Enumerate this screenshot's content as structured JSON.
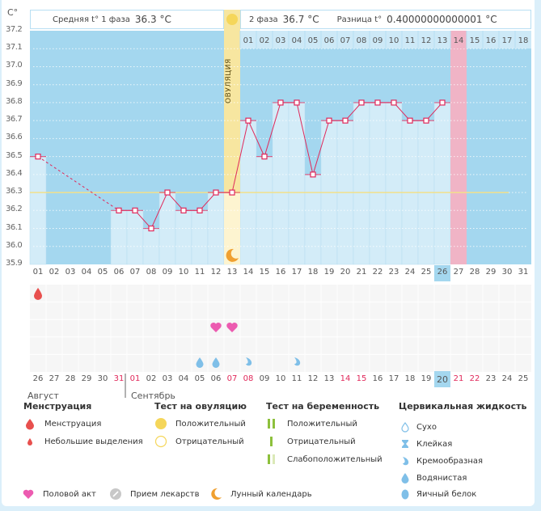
{
  "header": {
    "phase1_label": "Средняя t° 1 фаза",
    "phase1_value": "36.3 °C",
    "phase2_label": "2 фаза",
    "phase2_value": "36.7 °C",
    "diff_label": "Разница t°",
    "diff_value": "0.40000000000001 °C",
    "ovulation_label": "ОВУЛЯЦИЯ"
  },
  "colors": {
    "chart_bg": "#a4d7ef",
    "bar_fill": "#d3ecf8",
    "line": "#e0285a",
    "cover_line": "#f2e08a",
    "ovulation": "#f7e6a0",
    "period_day": "#f0b4c6",
    "menstruation": "#e8504e",
    "heart": "#ec5bb0",
    "fluid": "#7fbfe8",
    "moon": "#f0a030"
  },
  "chart_data": {
    "type": "line",
    "title": "",
    "ylabel": "C°",
    "xlabel": "",
    "ylim": [
      35.9,
      37.2
    ],
    "yticks": [
      "37.2",
      "37.1",
      "37.0",
      "36.9",
      "36.8",
      "36.7",
      "36.6",
      "36.5",
      "36.4",
      "36.3",
      "36.2",
      "36.1",
      "36.0",
      "35.9"
    ],
    "cycle_days": [
      "01",
      "02",
      "03",
      "04",
      "05",
      "06",
      "07",
      "08",
      "09",
      "10",
      "11",
      "12",
      "13",
      "14",
      "15",
      "16",
      "17",
      "18",
      "19",
      "20",
      "21",
      "22",
      "23",
      "24",
      "25",
      "26",
      "27",
      "28",
      "29",
      "30",
      "31"
    ],
    "temperatures": [
      36.5,
      null,
      null,
      null,
      null,
      36.2,
      36.2,
      36.1,
      36.3,
      36.2,
      36.2,
      36.3,
      36.3,
      36.7,
      36.5,
      36.8,
      36.8,
      36.4,
      36.7,
      36.7,
      36.8,
      36.8,
      36.8,
      36.7,
      36.7,
      36.8,
      null,
      null,
      null,
      null,
      null
    ],
    "cover_line": 36.3,
    "ovulation_day": "13",
    "phase2_day_labels": [
      "01",
      "02",
      "03",
      "04",
      "05",
      "06",
      "07",
      "08",
      "09",
      "10",
      "11",
      "12",
      "13",
      "14",
      "15",
      "16",
      "17",
      "18"
    ],
    "highlight_phase2_day": "14",
    "expected_period_day": "27",
    "today_cycle_day": "26"
  },
  "calendar": {
    "dates": [
      "26",
      "27",
      "28",
      "29",
      "30",
      "31",
      "01",
      "02",
      "03",
      "04",
      "05",
      "06",
      "07",
      "08",
      "09",
      "10",
      "11",
      "12",
      "13",
      "14",
      "15",
      "16",
      "17",
      "18",
      "19",
      "20",
      "21",
      "22",
      "23",
      "24",
      "25"
    ],
    "weekend": [
      false,
      false,
      false,
      false,
      false,
      true,
      true,
      false,
      false,
      false,
      false,
      false,
      true,
      true,
      false,
      false,
      false,
      false,
      false,
      true,
      true,
      false,
      false,
      false,
      false,
      false,
      true,
      true,
      false,
      false,
      false
    ],
    "today_date": "20",
    "months": [
      "Август",
      "Сентябрь"
    ],
    "menstruation_days": [
      "01"
    ],
    "intercourse_days": [
      "12",
      "13"
    ],
    "watery_days": [
      "11",
      "12"
    ],
    "creamy_days": [
      "14",
      "17"
    ]
  },
  "legend": {
    "menstruation": {
      "title": "Менструация",
      "items": [
        "Менструация",
        "Небольшие выделения"
      ]
    },
    "ovulation_test": {
      "title": "Тест на овуляцию",
      "items": [
        "Положительный",
        "Отрицательный"
      ]
    },
    "pregnancy_test": {
      "title": "Тест на беременность",
      "items": [
        "Положительный",
        "Отрицательный",
        "Слабоположительный"
      ]
    },
    "cervical_fluid": {
      "title": "Цервикальная жидкость",
      "items": [
        "Сухо",
        "Клейкая",
        "Кремообразная",
        "Водянистая",
        "Яичный белок"
      ]
    },
    "other": [
      "Половой акт",
      "Прием лекарств",
      "Лунный календарь"
    ]
  }
}
